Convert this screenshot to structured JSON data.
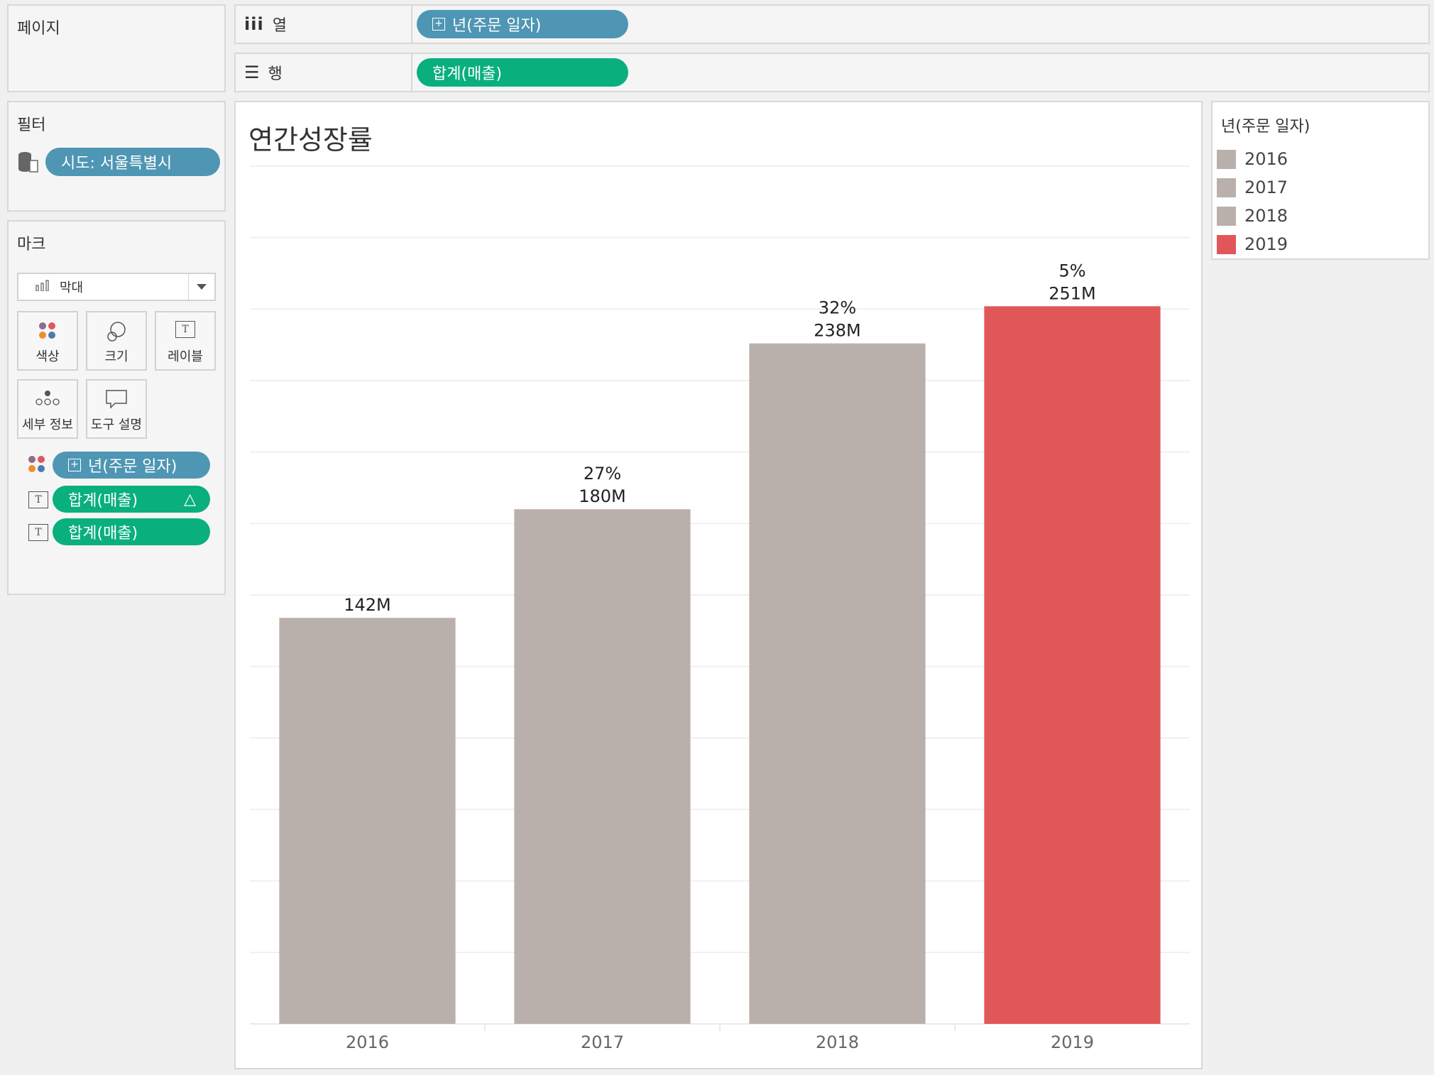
{
  "pages_panel": {
    "title": "페이지"
  },
  "columns_shelf": {
    "label": "열",
    "pill": "년(주문 일자)"
  },
  "rows_shelf": {
    "label": "행",
    "pill": "합계(매출)"
  },
  "filters_panel": {
    "title": "필터",
    "filter_pill": "시도: 서울특별시"
  },
  "marks_panel": {
    "title": "마크",
    "mark_type": "막대",
    "buttons": {
      "color": "색상",
      "size": "크기",
      "label": "레이블",
      "detail": "세부 정보",
      "tooltip": "도구 설명"
    },
    "fields": [
      {
        "type": "color",
        "label": "년(주문 일자)"
      },
      {
        "type": "label",
        "label": "합계(매출)",
        "delta": "△"
      },
      {
        "type": "label",
        "label": "합계(매출)"
      }
    ]
  },
  "legend": {
    "title": "년(주문 일자)",
    "items": [
      {
        "label": "2016",
        "color": "#bab0ab"
      },
      {
        "label": "2017",
        "color": "#bab0ab"
      },
      {
        "label": "2018",
        "color": "#bab0ab"
      },
      {
        "label": "2019",
        "color": "#e15759"
      }
    ]
  },
  "chart_data": {
    "type": "bar",
    "title": "연간성장률",
    "categories": [
      "2016",
      "2017",
      "2018",
      "2019"
    ],
    "values": [
      142,
      180,
      238,
      251
    ],
    "value_labels": [
      "142M",
      "180M",
      "238M",
      "251M"
    ],
    "growth_labels": [
      "",
      "27%",
      "32%",
      "5%"
    ],
    "colors": [
      "#bab0ab",
      "#bab0ab",
      "#bab0ab",
      "#e15759"
    ],
    "ylim": [
      0,
      300
    ],
    "grid": true,
    "legend": "right"
  }
}
